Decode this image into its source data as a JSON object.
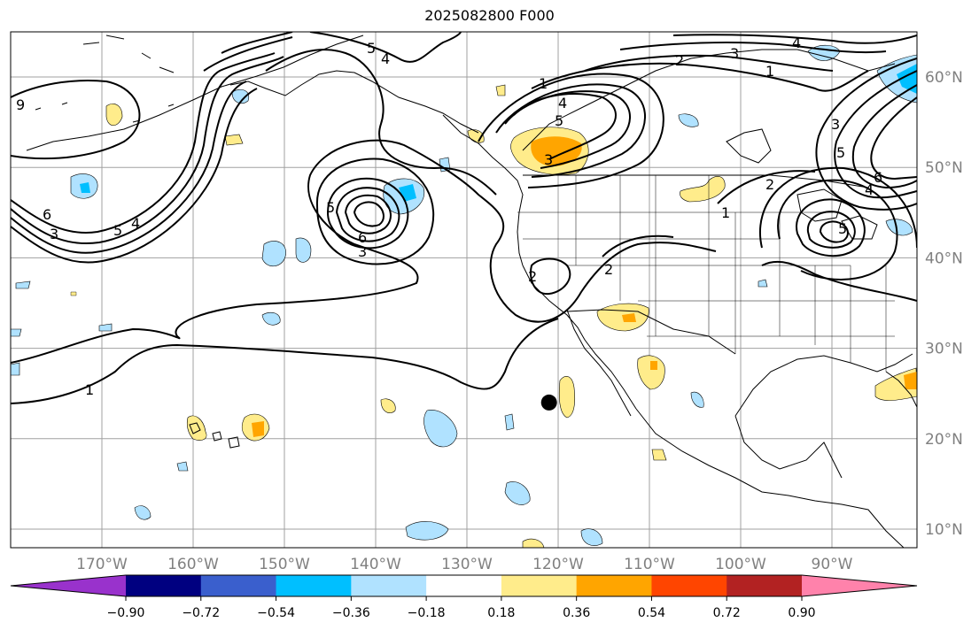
{
  "title": "2025082800 F000",
  "map": {
    "lon_labels": [
      "170°W",
      "160°W",
      "150°W",
      "140°W",
      "130°W",
      "120°W",
      "110°W",
      "100°W",
      "90°W"
    ],
    "lat_labels": [
      "10°N",
      "20°N",
      "30°N",
      "40°N",
      "50°N",
      "60°N"
    ],
    "contour_labels": [
      "1",
      "2",
      "3",
      "4",
      "5",
      "6",
      "9"
    ],
    "marker": {
      "lon": -121,
      "lat": 24
    }
  },
  "colorbar": {
    "ticks": [
      "−0.90",
      "−0.72",
      "−0.54",
      "−0.36",
      "−0.18",
      "0.18",
      "0.36",
      "0.54",
      "0.72",
      "0.90"
    ],
    "colors": {
      "under": "#9932cc",
      "bins": [
        "#000080",
        "#3a5fcd",
        "#00bfff",
        "#b0e2ff",
        "#ffffff",
        "#ffec8b",
        "#ffa500",
        "#ff4500",
        "#b22222"
      ],
      "over": "#ff82ab"
    }
  },
  "colors": {
    "grid": "#a0a0a0",
    "contour": "#000000",
    "label": "#808080"
  }
}
